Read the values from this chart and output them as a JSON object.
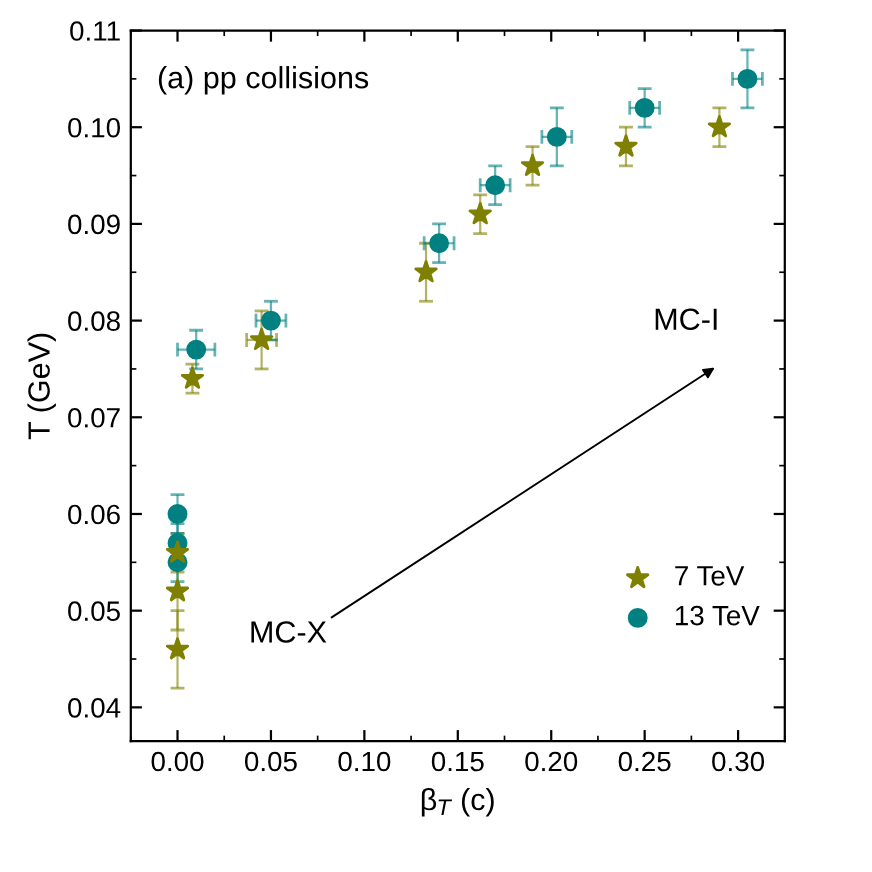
{
  "chart_data": {
    "type": "scatter",
    "title": "(a) pp collisions",
    "xlabel": "β$_{T}$ (c)",
    "ylabel": "T (GeV)",
    "xlim": [
      -0.025,
      0.325
    ],
    "ylim": [
      0.0365,
      0.11
    ],
    "xticks": [
      {
        "value": 0,
        "label": "0.00"
      },
      0.05,
      {
        "value": 0.1,
        "label": "0.10"
      },
      0.15,
      {
        "value": 0.2,
        "label": "0.20"
      },
      0.25,
      {
        "value": 0.3,
        "label": "0.30"
      }
    ],
    "yticks": [
      0.04,
      0.05,
      0.06,
      0.07,
      0.08,
      0.09,
      {
        "value": 0.1,
        "label": "0.10"
      },
      0.11
    ],
    "legend": "bottom right",
    "grid": false,
    "series": [
      {
        "name": "7 TeV",
        "color": "#808000",
        "marker": "star",
        "x": [
          0.0,
          0.0,
          0.0,
          0.008,
          0.045,
          0.133,
          0.162,
          0.19,
          0.24,
          0.29
        ],
        "values": [
          0.046,
          0.052,
          0.056,
          0.074,
          0.078,
          0.085,
          0.091,
          0.096,
          0.098,
          0.1
        ],
        "errors": [
          0.004,
          0.004,
          0.002,
          0.0015,
          0.003,
          0.003,
          0.002,
          0.002,
          0.002,
          0.002
        ],
        "xerrors": [
          null,
          null,
          null,
          null,
          0.008,
          null,
          null,
          null,
          null,
          null
        ]
      },
      {
        "name": "13 TeV",
        "color": "#008080",
        "marker": "circle",
        "x": [
          0.0,
          0.0,
          0.0,
          0.01,
          0.05,
          0.14,
          0.17,
          0.203,
          0.25,
          0.305
        ],
        "values": [
          0.055,
          0.057,
          0.06,
          0.077,
          0.08,
          0.088,
          0.094,
          0.099,
          0.102,
          0.105
        ],
        "errors": [
          0.002,
          0.002,
          0.002,
          0.002,
          0.002,
          0.002,
          0.002,
          0.003,
          0.002,
          0.003
        ],
        "xerrors": [
          null,
          null,
          null,
          0.01,
          0.008,
          0.008,
          0.008,
          0.008,
          0.008,
          0.008
        ]
      }
    ],
    "annotations": [
      "MC-X",
      "MC-I"
    ]
  }
}
